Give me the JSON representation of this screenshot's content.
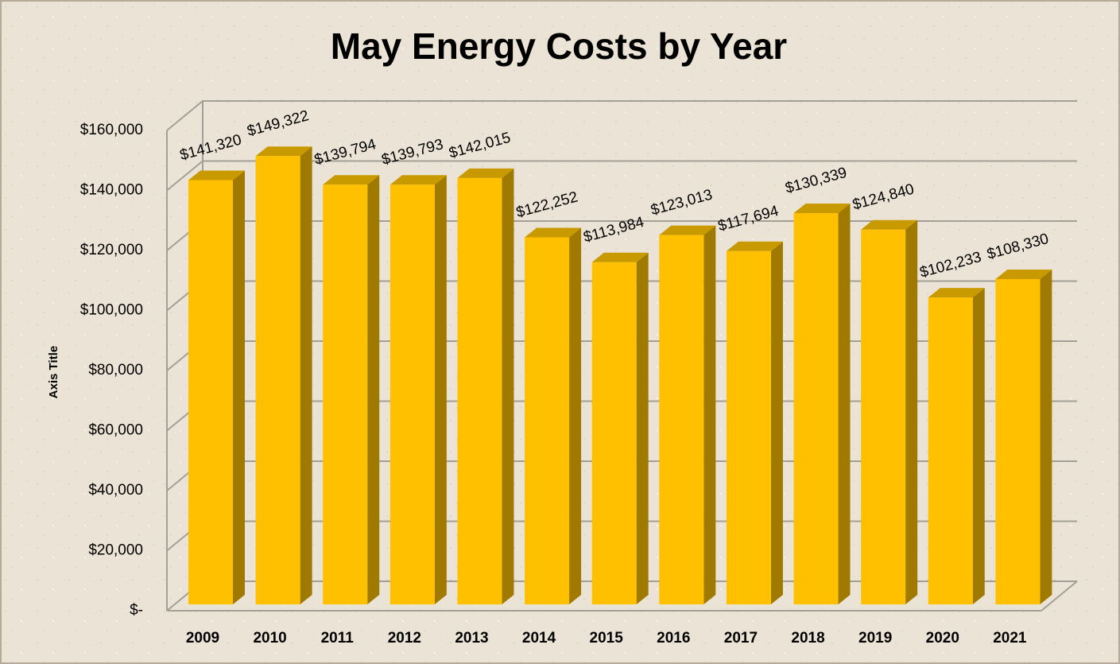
{
  "chart_data": {
    "type": "bar3d",
    "title": "May Energy Costs by Year",
    "y_axis_label": "Axis Title",
    "categories": [
      "2009",
      "2010",
      "2011",
      "2012",
      "2013",
      "2014",
      "2015",
      "2016",
      "2017",
      "2018",
      "2019",
      "2020",
      "2021"
    ],
    "values": [
      141320,
      149322,
      139794,
      139793,
      142015,
      122252,
      113984,
      123013,
      117694,
      130339,
      124840,
      102233,
      108330
    ],
    "value_labels": [
      "$141,320",
      "$149,322",
      "$139,794",
      "$139,793",
      "$142,015",
      "$122,252",
      "$113,984",
      "$123,013",
      "$117,694",
      "$130,339",
      "$124,840",
      "$102,233",
      "$108,330"
    ],
    "color": "#ffc000",
    "ylim": [
      0,
      160000
    ],
    "yticks": [
      {
        "value": 0,
        "label": "$-"
      },
      {
        "value": 20000,
        "label": "$20,000"
      },
      {
        "value": 40000,
        "label": "$40,000"
      },
      {
        "value": 60000,
        "label": "$60,000"
      },
      {
        "value": 80000,
        "label": "$80,000"
      },
      {
        "value": 100000,
        "label": "$100,000"
      },
      {
        "value": 120000,
        "label": "$120,000"
      },
      {
        "value": 140000,
        "label": "$140,000"
      },
      {
        "value": 160000,
        "label": "$160,000"
      }
    ],
    "grid": true
  }
}
